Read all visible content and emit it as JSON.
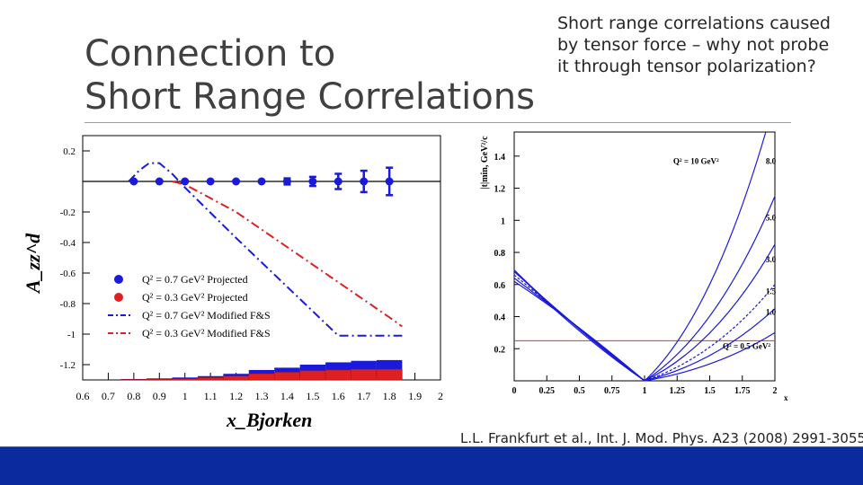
{
  "slide": {
    "title_lines": [
      "Connection to",
      "Short Range Correlations"
    ],
    "bullet": "Short range correlations caused by tensor force – why not probe it through tensor polarization?",
    "citation": "L.L. Frankfurt et al., Int. J. Mod. Phys. A23 (2008) 2991-3055"
  },
  "colors": {
    "footer": "#0a2a9e",
    "footer_line": "#1b6fd6",
    "blue": "#1a1adc",
    "red": "#e02020"
  },
  "chart_data": [
    {
      "type": "scatter",
      "title": "",
      "ylabel": "A_zz^d",
      "xlabel": "x_Bjorken",
      "xlim": [
        0.6,
        2.0
      ],
      "ylim": [
        -1.3,
        0.3
      ],
      "x_ticks": [
        "0.6",
        "0.7",
        "0.8",
        "0.9",
        "1",
        "1.1",
        "1.2",
        "1.3",
        "1.4",
        "1.5",
        "1.6",
        "1.7",
        "1.8",
        "1.9",
        "2"
      ],
      "y_ticks": [
        "0.2",
        "-0.2",
        "-0.4",
        "-0.6",
        "-0.8",
        "-1",
        "-1.2"
      ],
      "legend": [
        "Q² = 0.7 GeV² Projected",
        "Q² = 0.3 GeV² Projected",
        "Q² = 0.7 GeV² Modified F&S",
        "Q² = 0.3 GeV² Modified F&S"
      ],
      "points": {
        "x": [
          0.8,
          0.9,
          1.0,
          1.1,
          1.2,
          1.3,
          1.4,
          1.5,
          1.6,
          1.7,
          1.8
        ],
        "y": [
          0,
          0,
          0,
          0,
          0,
          0,
          0,
          0,
          0,
          0,
          0
        ],
        "err": [
          0.01,
          0.01,
          0.01,
          0.01,
          0.01,
          0.015,
          0.02,
          0.03,
          0.05,
          0.07,
          0.09
        ]
      },
      "series": [
        {
          "name": "Q² = 0.7 GeV² Modified F&S",
          "x": [
            0.78,
            0.82,
            0.86,
            0.9,
            0.95,
            1.0,
            1.2,
            1.4,
            1.6,
            1.7,
            1.8,
            1.85
          ],
          "y": [
            0,
            0.07,
            0.12,
            0.12,
            0.05,
            -0.04,
            -0.37,
            -0.69,
            -1.01,
            -1.01,
            -1.01,
            -1.01
          ]
        },
        {
          "name": "Q² = 0.3 GeV² Modified F&S",
          "x": [
            0.95,
            1.0,
            1.2,
            1.4,
            1.6,
            1.8,
            1.85
          ],
          "y": [
            0,
            -0.02,
            -0.2,
            -0.43,
            -0.66,
            -0.89,
            -0.95
          ]
        }
      ],
      "error_bars": {
        "x": [
          0.8,
          0.9,
          1.0,
          1.1,
          1.2,
          1.3,
          1.4,
          1.5,
          1.6,
          1.7,
          1.8
        ],
        "blue": [
          0.003,
          0.005,
          0.008,
          0.01,
          0.015,
          0.025,
          0.03,
          0.04,
          0.05,
          0.055,
          0.06
        ],
        "red": [
          0.003,
          0.005,
          0.008,
          0.015,
          0.025,
          0.04,
          0.05,
          0.06,
          0.065,
          0.07,
          0.07
        ]
      }
    },
    {
      "type": "line",
      "title": "",
      "ylabel": "|t|min, GeV²/c",
      "xlabel": "x",
      "xlim": [
        0,
        2
      ],
      "ylim": [
        0,
        1.55
      ],
      "x_ticks": [
        "0",
        "0.25",
        "0.5",
        "0.75",
        "1",
        "1.25",
        "1.5",
        "1.75",
        "2"
      ],
      "y_ticks": [
        "1.4",
        "1.2",
        "1",
        "0.8",
        "0.6",
        "0.4",
        "0.2"
      ],
      "reference_line": 0.25,
      "curves": [
        {
          "label": "Q² = 10 GeV²",
          "end_label": "8.0",
          "left": 0.69,
          "right_x": 1.93,
          "right_y": 1.55
        },
        {
          "label": "",
          "end_label": "5.0",
          "left": 0.69,
          "right_x": 2.0,
          "right_y": 1.15
        },
        {
          "label": "",
          "end_label": "3.0",
          "left": 0.68,
          "right_x": 2.0,
          "right_y": 0.85
        },
        {
          "label": "",
          "end_label": "1.5",
          "left": 0.66,
          "right_x": 2.0,
          "right_y": 0.6
        },
        {
          "label": "",
          "end_label": "1.0",
          "left": 0.64,
          "right_x": 2.0,
          "right_y": 0.45
        },
        {
          "label": "Q² = 0.5 GeV²",
          "end_label": "",
          "left": 0.62,
          "right_x": 2.0,
          "right_y": 0.3
        }
      ],
      "q2_top_label": "Q² = 10 GeV²",
      "q2_bottom_label": "Q² = 0.5 GeV²",
      "end_labels": [
        "8.0",
        "5.0",
        "3.0",
        "1.5",
        "1.0"
      ]
    }
  ]
}
